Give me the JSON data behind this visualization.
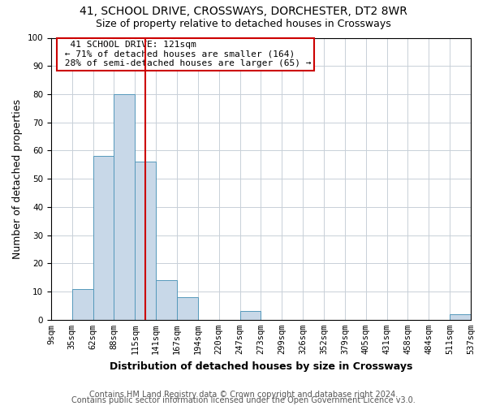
{
  "title1": "41, SCHOOL DRIVE, CROSSWAYS, DORCHESTER, DT2 8WR",
  "title2": "Size of property relative to detached houses in Crossways",
  "xlabel": "Distribution of detached houses by size in Crossways",
  "ylabel": "Number of detached properties",
  "bin_labels": [
    "9sqm",
    "35sqm",
    "62sqm",
    "88sqm",
    "115sqm",
    "141sqm",
    "167sqm",
    "194sqm",
    "220sqm",
    "247sqm",
    "273sqm",
    "299sqm",
    "326sqm",
    "352sqm",
    "379sqm",
    "405sqm",
    "431sqm",
    "458sqm",
    "484sqm",
    "511sqm",
    "537sqm"
  ],
  "bar_heights": [
    0,
    11,
    58,
    80,
    56,
    14,
    8,
    0,
    0,
    3,
    0,
    0,
    0,
    0,
    0,
    0,
    0,
    0,
    0,
    2
  ],
  "bar_color": "#c8d8e8",
  "bar_edge_color": "#5599bb",
  "property_size_bin": 4.5,
  "red_line_color": "#cc0000",
  "annotation_text": "  41 SCHOOL DRIVE: 121sqm  \n ← 71% of detached houses are smaller (164)\n 28% of semi-detached houses are larger (65) →",
  "annotation_box_color": "#ffffff",
  "annotation_box_edge_color": "#cc0000",
  "ylim": [
    0,
    100
  ],
  "yticks": [
    0,
    10,
    20,
    30,
    40,
    50,
    60,
    70,
    80,
    90,
    100
  ],
  "grid_color": "#c8d0d8",
  "background_color": "#ffffff",
  "footer1": "Contains HM Land Registry data © Crown copyright and database right 2024.",
  "footer2": "Contains public sector information licensed under the Open Government Licence v3.0.",
  "title_fontsize": 10,
  "subtitle_fontsize": 9,
  "axis_label_fontsize": 9,
  "tick_fontsize": 7.5,
  "annotation_fontsize": 8,
  "footer_fontsize": 7
}
